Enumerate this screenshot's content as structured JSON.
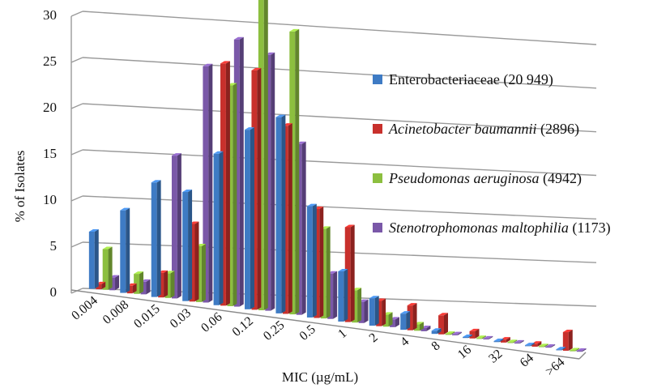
{
  "chart_data": {
    "type": "bar",
    "ylabel": "% of Isolates",
    "xlabel": "MIC (µg/mL)",
    "ylim": [
      0,
      30
    ],
    "yticks": [
      0,
      5,
      10,
      15,
      20,
      25,
      30
    ],
    "grid": true,
    "legend_position": "right",
    "categories": [
      "0.004",
      "0.008",
      "0.015",
      "0.03",
      "0.06",
      "0.12",
      "0.25",
      "0.5",
      "1",
      "2",
      "4",
      "8",
      "16",
      "32",
      "64",
      ">64"
    ],
    "series": [
      {
        "name_italic": "",
        "name_suffix": "Enterobacteriaceae (20 949)",
        "color": "#3E7BC4",
        "values": [
          4.5,
          6.6,
          9.3,
          9.0,
          12.7,
          15.3,
          17.0,
          9.8,
          4.5,
          2.5,
          1.5,
          0.3,
          0.1,
          0.1,
          0.05,
          0.05
        ]
      },
      {
        "name_italic": "Acinetobacter baumannii",
        "name_suffix": " (2896)",
        "color": "#C8302C",
        "values": [
          0.4,
          0.6,
          2.0,
          6.4,
          20.3,
          20.4,
          16.3,
          9.6,
          8.5,
          2.3,
          2.3,
          1.8,
          0.7,
          0.3,
          0.3,
          1.9
        ]
      },
      {
        "name_italic": "Pseudomonas aeruginosa",
        "name_suffix": " (4942)",
        "color": "#8CBF3F",
        "values": [
          3.2,
          1.6,
          2.0,
          4.6,
          18.5,
          28.9,
          24.5,
          7.9,
          2.9,
          1.1,
          0.6,
          0.1,
          0.05,
          0.05,
          0.05,
          0.05
        ]
      },
      {
        "name_italic": "Stenotrophomonas maltophilia",
        "name_suffix": " (1173)",
        "color": "#7A58A8",
        "values": [
          1.0,
          1.0,
          11.6,
          19.5,
          22.4,
          21.8,
          14.8,
          4.0,
          1.9,
          0.7,
          0.3,
          0.1,
          0.05,
          0.05,
          0.05,
          0.1
        ]
      }
    ]
  }
}
